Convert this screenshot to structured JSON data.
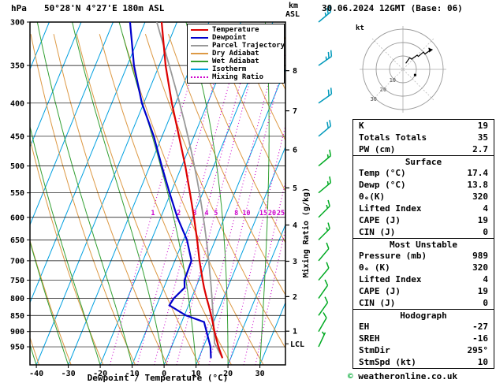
{
  "header": {
    "pressure_axis_label": "hPa",
    "station": "50°28'N 4°27'E 180m ASL",
    "km_label": "km",
    "asl_label": "ASL",
    "datetime": "30.06.2024 12GMT (Base: 06)"
  },
  "axes": {
    "xlabel": "Dewpoint / Temperature (°C)",
    "x_ticks": [
      -40,
      -30,
      -20,
      -10,
      0,
      10,
      20,
      30
    ],
    "pressure_ticks": [
      300,
      350,
      400,
      450,
      500,
      550,
      600,
      650,
      700,
      750,
      800,
      850,
      900,
      950
    ],
    "km_ticks": [
      8,
      7,
      6,
      5,
      4,
      3,
      2,
      1
    ],
    "lcl_label": "LCL",
    "mixing_axis_label": "Mixing Ratio (g/kg)"
  },
  "legend": [
    {
      "label": "Temperature",
      "color": "#dd0000",
      "dash": false
    },
    {
      "label": "Dewpoint",
      "color": "#0000cc",
      "dash": false
    },
    {
      "label": "Parcel Trajectory",
      "color": "#999999",
      "dash": false
    },
    {
      "label": "Dry Adiabat",
      "color": "#dd9944",
      "dash": false
    },
    {
      "label": "Wet Adiabat",
      "color": "#33a033",
      "dash": false
    },
    {
      "label": "Isotherm",
      "color": "#00a0e0",
      "dash": false
    },
    {
      "label": "Mixing Ratio",
      "color": "#cc00cc",
      "dash": true
    }
  ],
  "colors": {
    "temperature": "#dd0000",
    "dewpoint": "#0000cc",
    "parcel": "#999999",
    "dry_adiabat": "#dd9944",
    "wet_adiabat": "#33a033",
    "isotherm": "#00a0e0",
    "mixing_ratio": "#cc00cc",
    "wind_lower": "#00aa22",
    "wind_upper": "#0099bb",
    "copyright_symbol": "#00aa33"
  },
  "chart_data": {
    "type": "line",
    "y_scale": "log-pressure",
    "pressure_top": 300,
    "pressure_bottom": 1013,
    "temp_at_left_bottom": -42,
    "pressure_levels": [
      989,
      950,
      900,
      870,
      850,
      820,
      800,
      770,
      750,
      700,
      650,
      600,
      550,
      500,
      450,
      400,
      350,
      300
    ],
    "temperature_C": [
      17.4,
      14.7,
      11.5,
      9.7,
      8.4,
      6.3,
      4.8,
      2.6,
      1.2,
      -2.3,
      -5.7,
      -9.6,
      -14.0,
      -18.9,
      -24.7,
      -31.2,
      -38.0,
      -44.8
    ],
    "dewpoint_C": [
      13.8,
      12.2,
      9.0,
      7.0,
      0.5,
      -6.0,
      -5.5,
      -3.5,
      -4.5,
      -4.8,
      -8.9,
      -14.8,
      -20.4,
      -26.3,
      -32.6,
      -40.6,
      -47.9,
      -54.7
    ],
    "surface": {
      "pressure_mb": 989,
      "temp_C": 17.4,
      "dewp_C": 13.8
    },
    "lcl_pressure": 940,
    "mixing_ratio_lines_gkg": [
      1,
      2,
      3,
      4,
      5,
      8,
      10,
      15,
      20,
      25
    ],
    "km_pressure_map": {
      "8": 356.5,
      "7": 411.1,
      "6": 472.2,
      "5": 540.5,
      "4": 616.6,
      "3": 701.2,
      "2": 795.0,
      "1": 898.8
    },
    "wind_color_split_hPa": 450,
    "winds": [
      {
        "p": 950,
        "dir_deg": 205,
        "spd_kt": 5
      },
      {
        "p": 900,
        "dir_deg": 210,
        "spd_kt": 10
      },
      {
        "p": 850,
        "dir_deg": 215,
        "spd_kt": 10
      },
      {
        "p": 800,
        "dir_deg": 215,
        "spd_kt": 10
      },
      {
        "p": 750,
        "dir_deg": 220,
        "spd_kt": 10
      },
      {
        "p": 700,
        "dir_deg": 220,
        "spd_kt": 10
      },
      {
        "p": 650,
        "dir_deg": 225,
        "spd_kt": 15
      },
      {
        "p": 600,
        "dir_deg": 225,
        "spd_kt": 15
      },
      {
        "p": 550,
        "dir_deg": 230,
        "spd_kt": 15
      },
      {
        "p": 500,
        "dir_deg": 230,
        "spd_kt": 15
      },
      {
        "p": 450,
        "dir_deg": 230,
        "spd_kt": 20
      },
      {
        "p": 400,
        "dir_deg": 235,
        "spd_kt": 20
      },
      {
        "p": 350,
        "dir_deg": 235,
        "spd_kt": 25
      },
      {
        "p": 300,
        "dir_deg": 230,
        "spd_kt": 25
      }
    ]
  },
  "hodograph": {
    "unit": "kt",
    "rings_kt": [
      10,
      20,
      30
    ],
    "storm_dir_deg": 295,
    "storm_spd_kt": 10
  },
  "table": {
    "indices": [
      {
        "label": "K",
        "value": "19"
      },
      {
        "label": "Totals Totals",
        "value": "35"
      },
      {
        "label": "PW (cm)",
        "value": "2.7"
      }
    ],
    "sections": [
      {
        "title": "Surface",
        "rows": [
          {
            "label": "Temp (°C)",
            "value": "17.4"
          },
          {
            "label": "Dewp (°C)",
            "value": "13.8"
          },
          {
            "label": "θₑ(K)",
            "value": "320"
          },
          {
            "label": "Lifted Index",
            "value": "4"
          },
          {
            "label": "CAPE (J)",
            "value": "19"
          },
          {
            "label": "CIN (J)",
            "value": "0"
          }
        ]
      },
      {
        "title": "Most Unstable",
        "rows": [
          {
            "label": "Pressure (mb)",
            "value": "989"
          },
          {
            "label": "θₑ (K)",
            "value": "320"
          },
          {
            "label": "Lifted Index",
            "value": "4"
          },
          {
            "label": "CAPE (J)",
            "value": "19"
          },
          {
            "label": "CIN (J)",
            "value": "0"
          }
        ]
      },
      {
        "title": "Hodograph",
        "rows": [
          {
            "label": "EH",
            "value": "-27"
          },
          {
            "label": "SREH",
            "value": "-16"
          },
          {
            "label": "StmDir",
            "value": "295°"
          },
          {
            "label": "StmSpd (kt)",
            "value": "10"
          }
        ]
      }
    ]
  },
  "footer": {
    "copyright_symbol": "©",
    "copyright_text": " weatheronline.co.uk"
  }
}
